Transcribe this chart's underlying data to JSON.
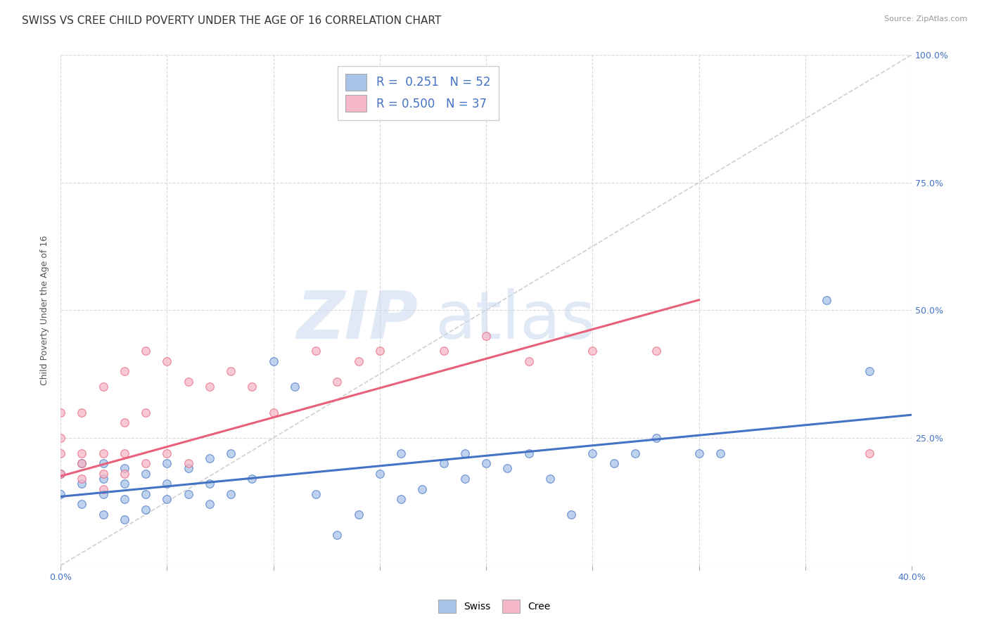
{
  "title": "SWISS VS CREE CHILD POVERTY UNDER THE AGE OF 16 CORRELATION CHART",
  "source": "Source: ZipAtlas.com",
  "ylabel": "Child Poverty Under the Age of 16",
  "xlim": [
    0.0,
    0.4
  ],
  "ylim": [
    0.0,
    1.0
  ],
  "xticks": [
    0.0,
    0.05,
    0.1,
    0.15,
    0.2,
    0.25,
    0.3,
    0.35,
    0.4
  ],
  "yticks": [
    0.0,
    0.25,
    0.5,
    0.75,
    1.0
  ],
  "yticklabels_right": [
    "",
    "25.0%",
    "50.0%",
    "75.0%",
    "100.0%"
  ],
  "watermark_zip": "ZIP",
  "watermark_atlas": "atlas",
  "swiss_color": "#a8c4e8",
  "cree_color": "#f5b8c8",
  "swiss_line_color": "#4472c4",
  "cree_line_color": "#e8607a",
  "diagonal_color": "#d0d0d0",
  "swiss_R": 0.251,
  "swiss_N": 52,
  "cree_R": 0.5,
  "cree_N": 37,
  "background_color": "#ffffff",
  "grid_color": "#d8d8d8",
  "swiss_scatter_x": [
    0.0,
    0.0,
    0.01,
    0.01,
    0.01,
    0.02,
    0.02,
    0.02,
    0.02,
    0.03,
    0.03,
    0.03,
    0.03,
    0.04,
    0.04,
    0.04,
    0.05,
    0.05,
    0.05,
    0.06,
    0.06,
    0.07,
    0.07,
    0.07,
    0.08,
    0.08,
    0.09,
    0.1,
    0.11,
    0.12,
    0.13,
    0.14,
    0.15,
    0.16,
    0.16,
    0.17,
    0.18,
    0.19,
    0.19,
    0.2,
    0.21,
    0.22,
    0.23,
    0.24,
    0.25,
    0.26,
    0.27,
    0.28,
    0.3,
    0.31,
    0.36,
    0.38
  ],
  "swiss_scatter_y": [
    0.14,
    0.18,
    0.12,
    0.16,
    0.2,
    0.1,
    0.14,
    0.17,
    0.2,
    0.09,
    0.13,
    0.16,
    0.19,
    0.11,
    0.14,
    0.18,
    0.13,
    0.16,
    0.2,
    0.14,
    0.19,
    0.12,
    0.16,
    0.21,
    0.14,
    0.22,
    0.17,
    0.4,
    0.35,
    0.14,
    0.06,
    0.1,
    0.18,
    0.13,
    0.22,
    0.15,
    0.2,
    0.22,
    0.17,
    0.2,
    0.19,
    0.22,
    0.17,
    0.1,
    0.22,
    0.2,
    0.22,
    0.25,
    0.22,
    0.22,
    0.52,
    0.38
  ],
  "cree_scatter_x": [
    0.0,
    0.0,
    0.0,
    0.0,
    0.01,
    0.01,
    0.01,
    0.01,
    0.02,
    0.02,
    0.02,
    0.02,
    0.03,
    0.03,
    0.03,
    0.03,
    0.04,
    0.04,
    0.04,
    0.05,
    0.05,
    0.06,
    0.06,
    0.07,
    0.08,
    0.09,
    0.1,
    0.12,
    0.13,
    0.14,
    0.15,
    0.18,
    0.2,
    0.22,
    0.25,
    0.28,
    0.38
  ],
  "cree_scatter_y": [
    0.18,
    0.22,
    0.25,
    0.3,
    0.17,
    0.2,
    0.22,
    0.3,
    0.15,
    0.18,
    0.22,
    0.35,
    0.18,
    0.22,
    0.28,
    0.38,
    0.2,
    0.3,
    0.42,
    0.22,
    0.4,
    0.2,
    0.36,
    0.35,
    0.38,
    0.35,
    0.3,
    0.42,
    0.36,
    0.4,
    0.42,
    0.42,
    0.45,
    0.4,
    0.42,
    0.42,
    0.22
  ],
  "swiss_line_x": [
    0.0,
    0.4
  ],
  "swiss_line_y": [
    0.135,
    0.295
  ],
  "cree_line_x": [
    0.0,
    0.3
  ],
  "cree_line_y": [
    0.175,
    0.52
  ],
  "title_fontsize": 11,
  "axis_label_fontsize": 9,
  "tick_fontsize": 9,
  "legend_fontsize": 12
}
